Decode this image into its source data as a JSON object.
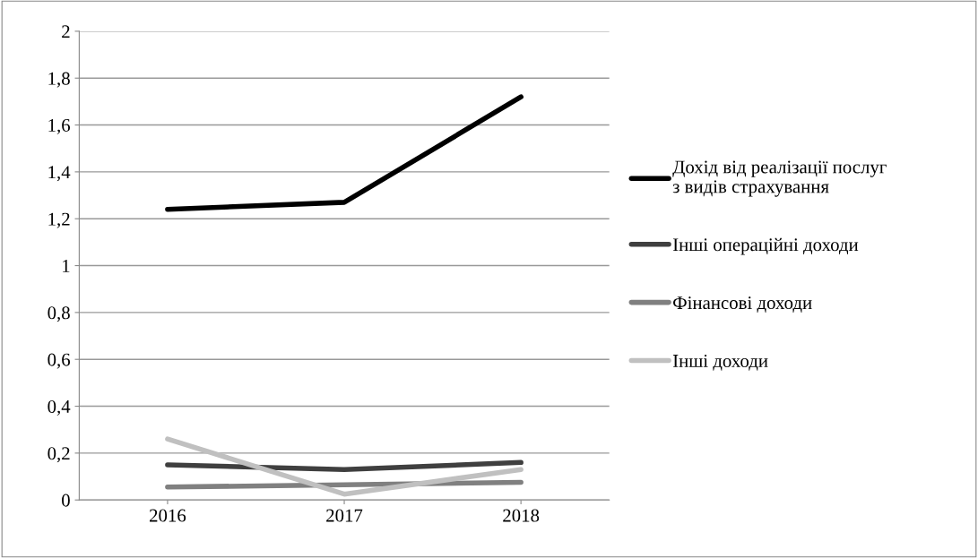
{
  "chart_data": {
    "type": "line",
    "categories": [
      "2016",
      "2017",
      "2018"
    ],
    "series": [
      {
        "name": "Дохід від реалізації послуг з видів страхування",
        "color": "#000000",
        "values": [
          1.24,
          1.27,
          1.72
        ]
      },
      {
        "name": "Інші операційні доходи",
        "color": "#3f3f3f",
        "values": [
          0.15,
          0.13,
          0.16
        ]
      },
      {
        "name": "Фінансові доходи",
        "color": "#808080",
        "values": [
          0.055,
          0.065,
          0.075
        ]
      },
      {
        "name": "Інші доходи",
        "color": "#c0c0c0",
        "values": [
          0.26,
          0.025,
          0.13
        ]
      }
    ],
    "ylim": [
      0,
      2
    ],
    "yticks": [
      {
        "value": 0,
        "label": "0"
      },
      {
        "value": 0.2,
        "label": "0,2"
      },
      {
        "value": 0.4,
        "label": "0,4"
      },
      {
        "value": 0.6,
        "label": "0,6"
      },
      {
        "value": 0.8,
        "label": "0,8"
      },
      {
        "value": 1,
        "label": "1"
      },
      {
        "value": 1.2,
        "label": "1,2"
      },
      {
        "value": 1.4,
        "label": "1,4"
      },
      {
        "value": 1.6,
        "label": "1,6"
      },
      {
        "value": 1.8,
        "label": "1,8"
      },
      {
        "value": 2,
        "label": "2"
      }
    ],
    "grid": "y",
    "legend": "right",
    "marker": "none",
    "line_style": "solid"
  }
}
